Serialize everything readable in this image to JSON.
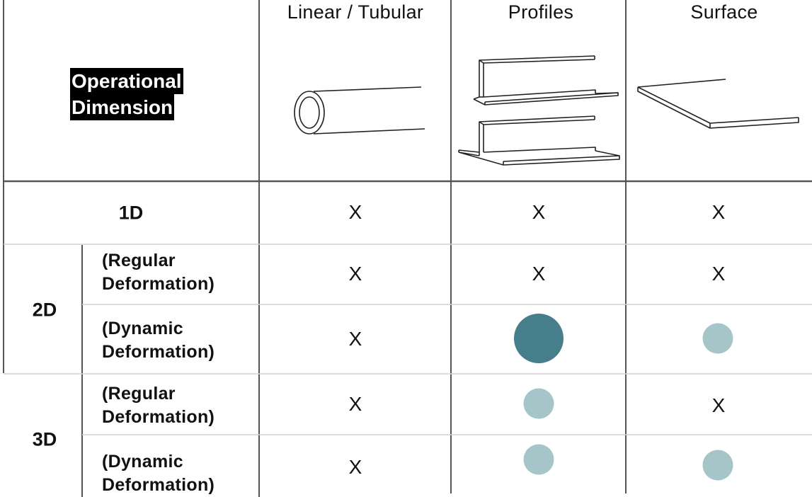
{
  "header": {
    "operational_dimension": [
      "Operational",
      "Dimension"
    ],
    "columns": [
      {
        "label": "Linear / Tubular",
        "icon": "tube-icon"
      },
      {
        "label": "Profiles",
        "icon": "profiles-icon"
      },
      {
        "label": "Surface",
        "icon": "surface-sheet-icon"
      }
    ]
  },
  "rows": {
    "r1": {
      "dimension": "1D",
      "cells": [
        "X",
        "X",
        "X"
      ]
    },
    "group2d": {
      "dimension": "2D"
    },
    "r2": {
      "sub": [
        "(Regular",
        "Deformation)"
      ],
      "cells": [
        "X",
        "X",
        "X"
      ]
    },
    "r3": {
      "sub": [
        "(Dynamic",
        "Deformation)"
      ],
      "cells": [
        "X",
        "circle-large",
        "circle-small"
      ]
    },
    "group3d": {
      "dimension": "3D"
    },
    "r4": {
      "sub": [
        "(Regular",
        "Deformation)"
      ],
      "cells": [
        "X",
        "circle-small",
        "X"
      ]
    },
    "r5": {
      "sub": [
        "(Dynamic",
        "Deformation)"
      ],
      "cells": [
        "X",
        "circle-small",
        "circle-small"
      ]
    }
  },
  "colors": {
    "circle_large": "#467f8b",
    "circle_small": "#a6c5c9",
    "grid_dark": "#555555",
    "grid_light": "#cfcfcf"
  }
}
